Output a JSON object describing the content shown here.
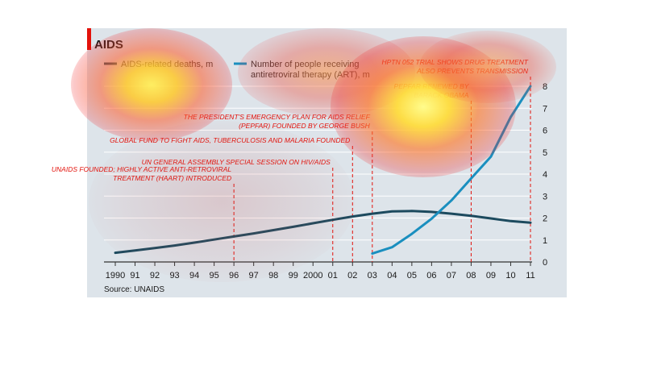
{
  "chart_data": {
    "type": "line",
    "title": "AIDS",
    "source": "Source: UNAIDS",
    "x_ticks": [
      "1990",
      "91",
      "92",
      "93",
      "94",
      "95",
      "96",
      "97",
      "98",
      "99",
      "2000",
      "01",
      "02",
      "03",
      "04",
      "05",
      "06",
      "07",
      "08",
      "09",
      "10",
      "11"
    ],
    "x_range": [
      1990,
      2011
    ],
    "ylim": [
      0,
      8
    ],
    "y_ticks": [
      0,
      1,
      2,
      3,
      4,
      5,
      6,
      7,
      8
    ],
    "grid": true,
    "legend_position": "top-left",
    "series": [
      {
        "name": "AIDS-related deaths, m",
        "color": "#1c4a5e",
        "x": [
          1990,
          1991,
          1992,
          1993,
          1994,
          1995,
          1996,
          1997,
          1998,
          1999,
          2000,
          2001,
          2002,
          2003,
          2004,
          2005,
          2006,
          2007,
          2008,
          2009,
          2010,
          2011
        ],
        "values": [
          0.42,
          0.52,
          0.63,
          0.75,
          0.88,
          1.02,
          1.16,
          1.3,
          1.45,
          1.6,
          1.76,
          1.92,
          2.07,
          2.2,
          2.3,
          2.32,
          2.28,
          2.2,
          2.1,
          1.98,
          1.86,
          1.79
        ]
      },
      {
        "name": "Number of people receiving antiretroviral therapy (ART), m",
        "color": "#1a8fbf",
        "x": [
          2003,
          2004,
          2005,
          2006,
          2007,
          2008,
          2009,
          2010,
          2011
        ],
        "values": [
          0.38,
          0.67,
          1.28,
          1.97,
          2.8,
          3.8,
          4.8,
          6.6,
          8.0
        ]
      }
    ],
    "legend_labels": {
      "deaths": "AIDS-related deaths, m",
      "art_line1": "Number of people receiving",
      "art_line2": "antiretroviral therapy (ART), m"
    },
    "annotations": [
      {
        "year": 1996,
        "lines": [
          "UNAIDS FOUNDED; HIGHLY ACTIVE ANTI-RETROVIRAL",
          "TREATMENT (HAART) INTRODUCED"
        ]
      },
      {
        "year": 2001,
        "lines": [
          "UN GENERAL ASSEMBLY SPECIAL SESSION ON HIV/AIDS"
        ]
      },
      {
        "year": 2002,
        "lines": [
          "GLOBAL FUND TO FIGHT AIDS, TUBERCULOSIS AND MALARIA FOUNDED"
        ]
      },
      {
        "year": 2003,
        "lines": [
          "THE PRESIDENT'S EMERGENCY PLAN FOR AIDS RELIEF",
          "(PEPFAR) FOUNDED BY GEORGE BUSH"
        ]
      },
      {
        "year": 2008,
        "lines": [
          "PEPFAR RENEWED BY",
          "BARACK OBAMA"
        ]
      },
      {
        "year": 2011,
        "lines": [
          "HPTN 052 TRIAL SHOWS DRUG TREATMENT",
          "ALSO PREVENTS TRANSMISSION"
        ]
      }
    ],
    "colors": {
      "annotation": "#e3120b",
      "panel": "#dde4ea",
      "gridline": "#ffffff",
      "brand_tab": "#e3120b"
    }
  }
}
